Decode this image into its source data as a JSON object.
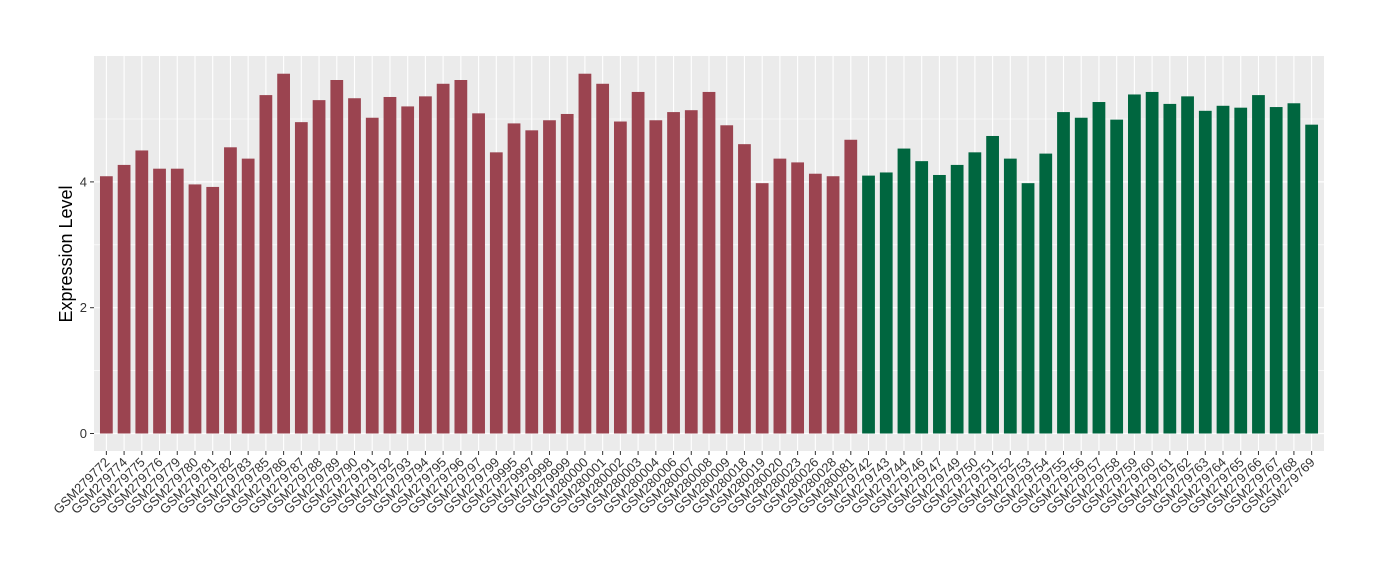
{
  "chart_data": {
    "type": "bar",
    "title": "",
    "xlabel": "",
    "ylabel": "Expression Level",
    "ylim": [
      0,
      5.95
    ],
    "yticks": [
      0,
      2,
      4
    ],
    "grid": true,
    "legend": "none",
    "colors": {
      "group1": "#9B4450",
      "group2": "#00663F",
      "panel": "#EBEBEB",
      "grid": "#FFFFFF"
    },
    "categories": [
      "GSM279772",
      "GSM279774",
      "GSM279775",
      "GSM279776",
      "GSM279779",
      "GSM279780",
      "GSM279781",
      "GSM279782",
      "GSM279783",
      "GSM279785",
      "GSM279786",
      "GSM279787",
      "GSM279788",
      "GSM279789",
      "GSM279790",
      "GSM279791",
      "GSM279792",
      "GSM279793",
      "GSM279794",
      "GSM279795",
      "GSM279796",
      "GSM279797",
      "GSM279799",
      "GSM279995",
      "GSM279997",
      "GSM279998",
      "GSM279999",
      "GSM280000",
      "GSM280001",
      "GSM280002",
      "GSM280003",
      "GSM280004",
      "GSM280006",
      "GSM280007",
      "GSM280008",
      "GSM280009",
      "GSM280018",
      "GSM280019",
      "GSM280020",
      "GSM280023",
      "GSM280026",
      "GSM280028",
      "GSM280081",
      "GSM279742",
      "GSM279743",
      "GSM279744",
      "GSM279746",
      "GSM279747",
      "GSM279749",
      "GSM279750",
      "GSM279751",
      "GSM279752",
      "GSM279753",
      "GSM279754",
      "GSM279755",
      "GSM279756",
      "GSM279757",
      "GSM279758",
      "GSM279759",
      "GSM279760",
      "GSM279761",
      "GSM279762",
      "GSM279763",
      "GSM279764",
      "GSM279765",
      "GSM279766",
      "GSM279767",
      "GSM279768",
      "GSM279769"
    ],
    "values": [
      4.09,
      4.27,
      4.5,
      4.21,
      4.21,
      3.96,
      3.92,
      4.55,
      4.37,
      5.38,
      5.72,
      4.95,
      5.3,
      5.62,
      5.33,
      5.02,
      5.35,
      5.2,
      5.36,
      5.56,
      5.62,
      5.09,
      4.47,
      4.93,
      4.82,
      4.98,
      5.08,
      5.72,
      5.56,
      4.96,
      5.43,
      4.98,
      5.11,
      5.14,
      5.43,
      4.9,
      4.6,
      3.98,
      4.37,
      4.31,
      4.13,
      4.09,
      4.67,
      4.1,
      4.15,
      4.53,
      4.33,
      4.11,
      4.27,
      4.47,
      4.73,
      4.37,
      3.98,
      4.45,
      5.11,
      5.02,
      5.27,
      4.99,
      5.39,
      5.43,
      5.24,
      5.36,
      5.13,
      5.21,
      5.18,
      5.38,
      5.19,
      5.25,
      4.91
    ],
    "group_sizes": [
      43,
      26
    ]
  }
}
